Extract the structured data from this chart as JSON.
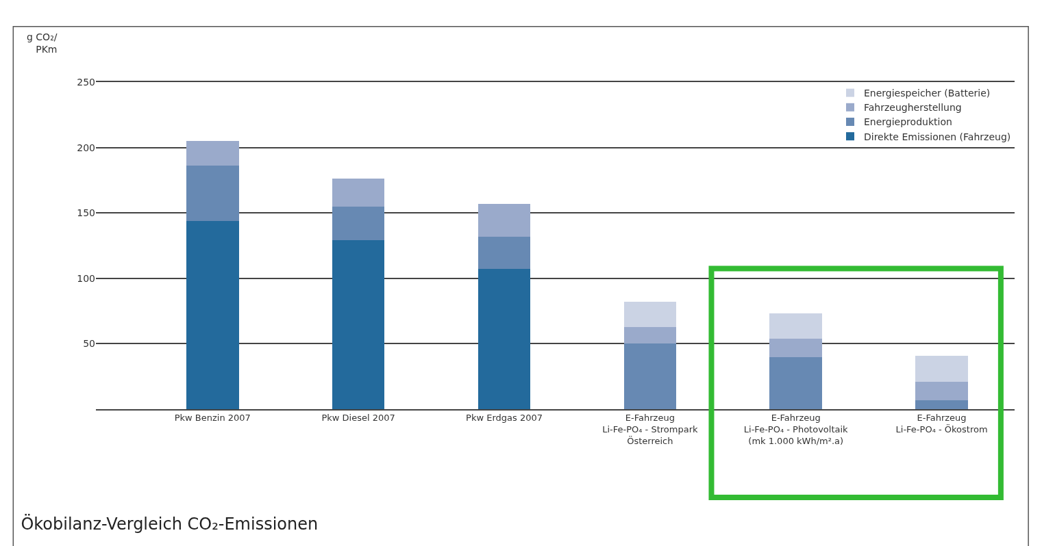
{
  "chart_data": {
    "type": "bar",
    "stacked": true,
    "title": "Ökobilanz-Vergleich CO₂-Emissionen",
    "ylabel": "g CO₂/\nPKm",
    "categories": [
      "Pkw Benzin 2007",
      "Pkw Diesel 2007",
      "Pkw Erdgas 2007",
      "E-Fahrzeug\nLi-Fe-PO₄ - Strompark\nÖsterreich",
      "E-Fahrzeug\nLi-Fe-PO₄ - Photovoltaik\n(mk 1.000 kWh/m².a)",
      "E-Fahrzeug\nLi-Fe-PO₄ - Ökostrom"
    ],
    "series": [
      {
        "name": "Direkte Emissionen (Fahrzeug)",
        "color": "#236a9c",
        "values": [
          144,
          129,
          107,
          0,
          0,
          0
        ]
      },
      {
        "name": "Energieproduktion",
        "color": "#6789b3",
        "values": [
          42,
          26,
          25,
          50,
          40,
          7
        ]
      },
      {
        "name": "Fahrzeugherstellung",
        "color": "#9aaacb",
        "values": [
          19,
          21,
          25,
          13,
          14,
          14
        ]
      },
      {
        "name": "Energiespeicher (Batterie)",
        "color": "#cbd3e4",
        "values": [
          0,
          0,
          0,
          19,
          19,
          20
        ]
      }
    ],
    "ylim": [
      0,
      250
    ],
    "yticks": [
      50,
      100,
      150,
      200,
      250
    ],
    "grid": "y",
    "legend": "top right"
  }
}
